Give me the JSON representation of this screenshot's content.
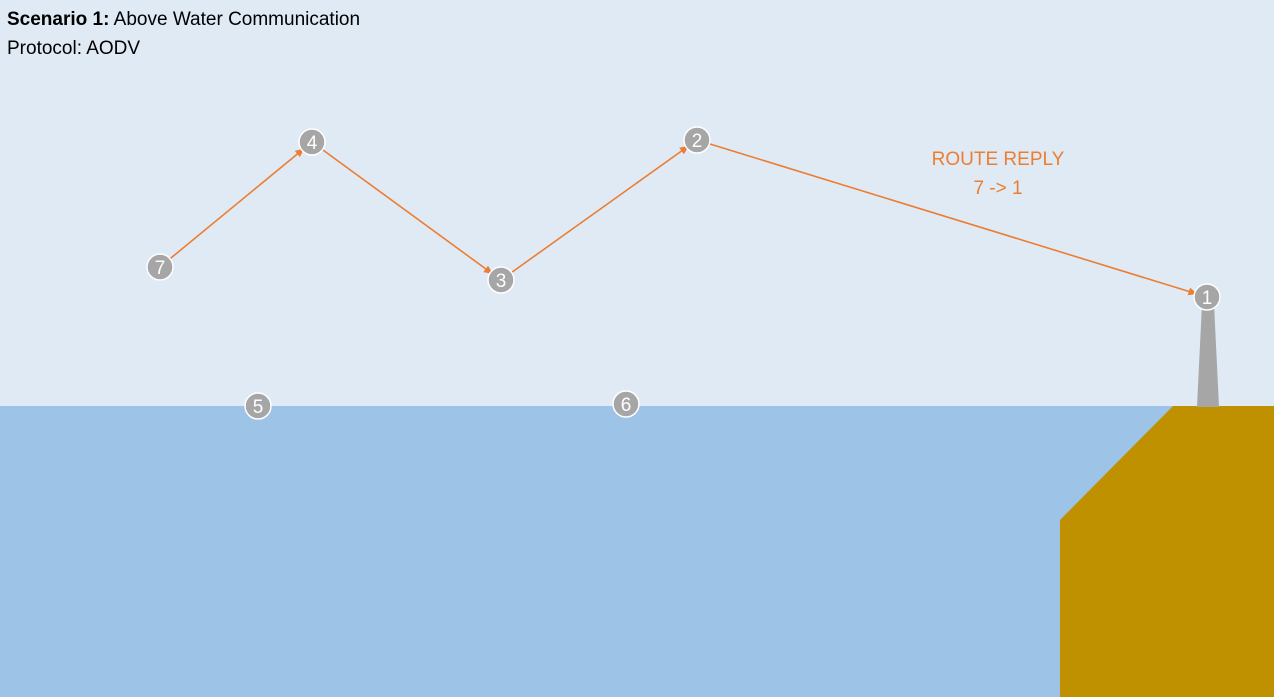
{
  "header": {
    "scenario_label": "Scenario 1:",
    "scenario_title": "Above Water Communication",
    "protocol_line": "Protocol: AODV"
  },
  "caption": {
    "line1": "ROUTE REPLY",
    "line2": "7 -> 1"
  },
  "colors": {
    "sky": "#dfeaf5",
    "water": "#9dc3e6",
    "land": "#bf9000",
    "node": "#a6a6a6",
    "tower": "#a6a6a6",
    "route": "#ed7d31"
  },
  "nodes": [
    {
      "id": "1",
      "label": "1"
    },
    {
      "id": "2",
      "label": "2"
    },
    {
      "id": "3",
      "label": "3"
    },
    {
      "id": "4",
      "label": "4"
    },
    {
      "id": "5",
      "label": "5"
    },
    {
      "id": "6",
      "label": "6"
    },
    {
      "id": "7",
      "label": "7"
    }
  ],
  "route": {
    "hops": [
      [
        "7",
        "4"
      ],
      [
        "4",
        "3"
      ],
      [
        "3",
        "2"
      ],
      [
        "2",
        "1"
      ]
    ]
  }
}
